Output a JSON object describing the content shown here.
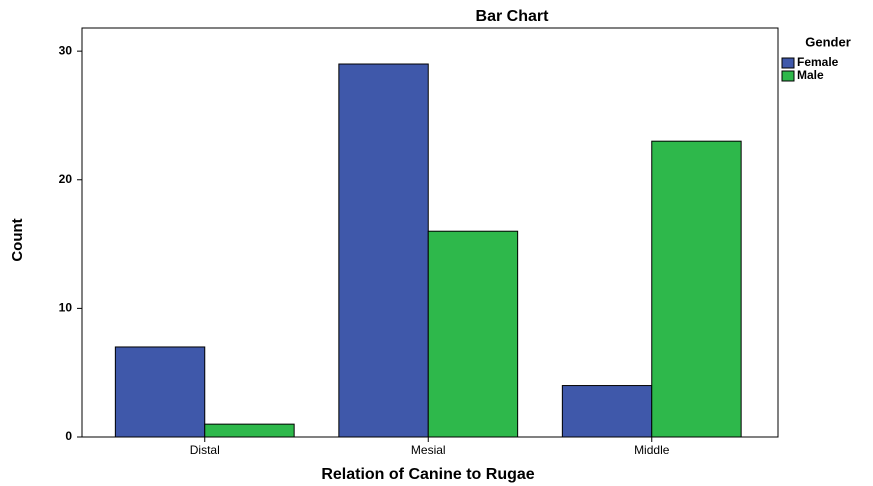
{
  "chart_data": {
    "type": "bar",
    "title": "Bar Chart",
    "x_label": "Relation of Canine to Rugae",
    "y_label": "Count",
    "categories": [
      "Distal",
      "Mesial",
      "Middle"
    ],
    "legend_title": "Gender",
    "series": [
      {
        "name": "Female",
        "color": "#3f58aa",
        "values": [
          7,
          29,
          4
        ]
      },
      {
        "name": "Male",
        "color": "#2eb84b",
        "values": [
          1,
          16,
          23
        ]
      }
    ],
    "ylim": [
      0,
      31.8
    ],
    "yticks": [
      0,
      10,
      20,
      30
    ]
  }
}
